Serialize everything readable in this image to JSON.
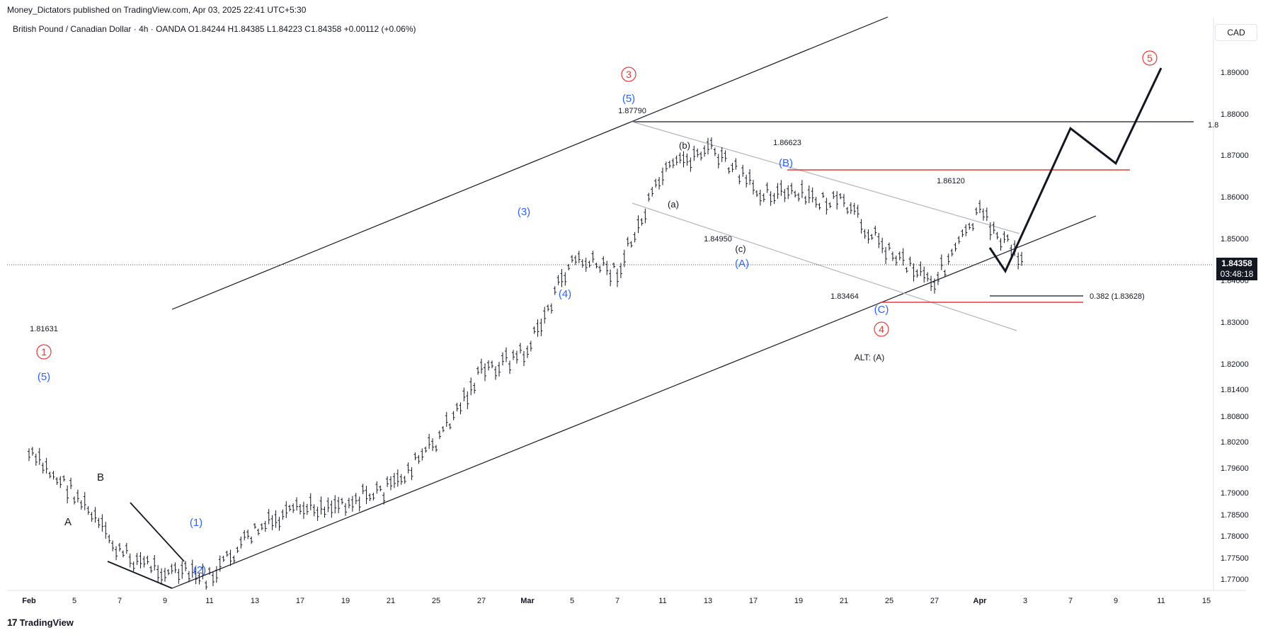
{
  "header": {
    "published": "Money_Dictators published on TradingView.com, Apr 03, 2025 22:41 UTC+5:30",
    "symbol": "British Pound / Canadian Dollar · 4h · OANDA",
    "ohlc": "O1.84244  H1.84385  L1.84223  C1.84358  +0.00112 (+0.06%)"
  },
  "currency": "CAD",
  "last_price": "1.84358",
  "countdown": "03:48:18",
  "footer": {
    "brand": "TradingView",
    "logo_glyph": "17"
  },
  "colors": {
    "red": "#e53935",
    "blue": "#2962ff",
    "black": "#131722",
    "grey": "#b2b5be"
  },
  "chart_data": {
    "type": "line",
    "title": "",
    "xlabel": "",
    "ylabel": "",
    "x_tick_labels": [
      "Feb",
      "5",
      "7",
      "9",
      "11",
      "13",
      "17",
      "19",
      "21",
      "25",
      "27",
      "Mar",
      "5",
      "7",
      "11",
      "13",
      "17",
      "19",
      "21",
      "25",
      "27",
      "Apr",
      "3",
      "7",
      "9",
      "11",
      "15"
    ],
    "y_ticks": [
      "1.89000",
      "1.88000",
      "1.87000",
      "1.86000",
      "1.85000",
      "1.84000",
      "1.83000",
      "1.82000",
      "1.81400",
      "1.80800",
      "1.80200",
      "1.79600",
      "1.79000",
      "1.78500",
      "1.78000",
      "1.77500",
      "1.77000"
    ],
    "y_axis_cut_label": "1.8",
    "ylim": [
      1.768,
      1.895
    ],
    "price_series": {
      "name": "",
      "points": [
        [
          "Feb",
          1.799
        ],
        [
          "5",
          1.79
        ],
        [
          "7",
          1.776
        ],
        [
          "9",
          1.772
        ],
        [
          "11",
          1.77
        ],
        [
          "13",
          1.781
        ],
        [
          "17",
          1.786
        ],
        [
          "19",
          1.788
        ],
        [
          "21",
          1.791
        ],
        [
          "25",
          1.802
        ],
        [
          "27",
          1.818
        ],
        [
          "Mar",
          1.823
        ],
        [
          "5",
          1.845
        ],
        [
          "7",
          1.842
        ],
        [
          "11",
          1.865
        ],
        [
          "13",
          1.872
        ],
        [
          "17",
          1.862
        ],
        [
          "19",
          1.86
        ],
        [
          "21",
          1.858
        ],
        [
          "25",
          1.847
        ],
        [
          "27",
          1.84
        ],
        [
          "Apr",
          1.856
        ],
        [
          "3",
          1.8436
        ]
      ]
    },
    "projection": [
      [
        "3",
        1.842
      ],
      [
        "7",
        1.8765
      ],
      [
        "9",
        1.868
      ],
      [
        "11",
        1.891
      ]
    ],
    "price_labels": [
      "1.81631",
      "1.87790",
      "1.86623",
      "1.84950",
      "1.83464",
      "1.86120"
    ],
    "wave_labels_red": [
      "1",
      "3",
      "4",
      "5"
    ],
    "wave_labels_blue": [
      "(5)",
      "(1)",
      "(2)",
      "(3)",
      "(4)",
      "(5)",
      "(A)",
      "(B)",
      "(C)"
    ],
    "wave_labels_black": [
      "A",
      "B",
      "(a)",
      "(b)",
      "(c)"
    ],
    "annotations": [
      "ALT: (A)",
      "0.382 (1.83628)"
    ]
  }
}
